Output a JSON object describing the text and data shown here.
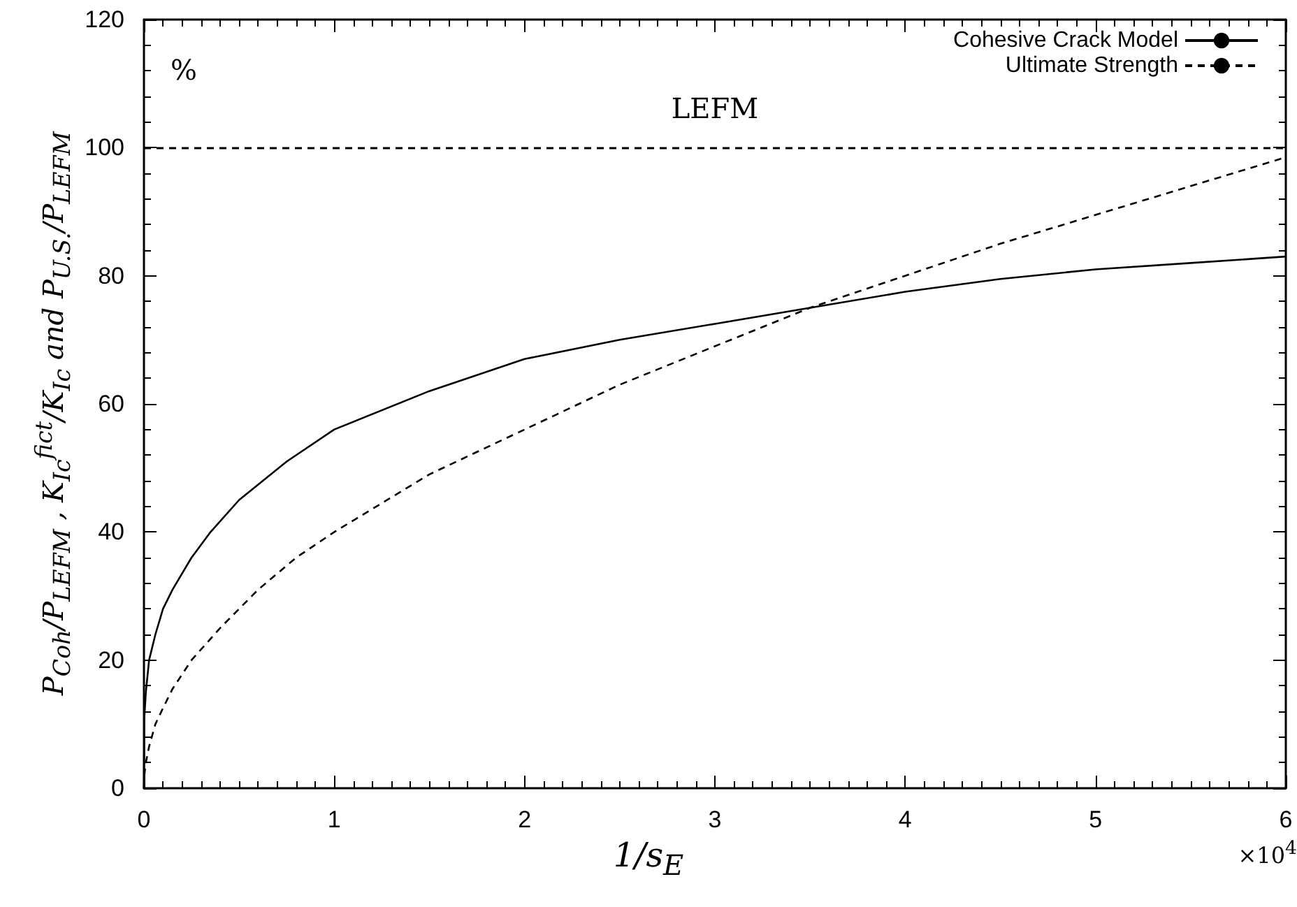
{
  "chart_data": {
    "type": "line",
    "xlabel": "1/s$_{E}$",
    "ylabel": "P$_{Coh}$/P$_{LEFM}$ , K$_{Ic}$$^{fict}$/K$_{Ic}$ and P$_{U.S.}$/P$_{LEFM}$",
    "annotations": [
      "%",
      "×10$^{4}$"
    ],
    "series": [
      {
        "name": "Cohesive Crack Model",
        "color": "#000000",
        "line_style": "solid",
        "x": [
          0,
          0.002,
          0.01,
          0.027,
          0.06,
          0.1,
          0.15,
          0.25,
          0.35,
          0.5,
          0.75,
          1,
          1.5,
          2,
          2.5,
          3,
          3.5,
          4,
          4.5,
          5,
          5.5,
          6
        ],
        "values": [
          0,
          11,
          15,
          20,
          24,
          28,
          31,
          36,
          40,
          45,
          51,
          56,
          62,
          67,
          70,
          72.5,
          75,
          77.5,
          79.5,
          81,
          82,
          83
        ]
      },
      {
        "name": "Ultimate Strength",
        "color": "#000000",
        "line_style": "dashed",
        "x": [
          0,
          0.002,
          0.01,
          0.027,
          0.06,
          0.1,
          0.15,
          0.25,
          0.4,
          0.6,
          0.8,
          1,
          1.5,
          2,
          2.5,
          3,
          3.5,
          4,
          4.5,
          5,
          5.5,
          6
        ],
        "values": [
          0,
          2,
          4,
          6.5,
          10,
          12.5,
          15.5,
          20,
          25,
          31,
          36,
          40,
          49,
          56,
          63,
          69,
          75,
          80,
          85,
          89.5,
          94,
          98.5
        ]
      }
    ],
    "ref_lines": [
      {
        "axis": "y",
        "value": 100,
        "label": "LEFM",
        "color": "#000000",
        "line_style": "dashed"
      }
    ],
    "xlim": [
      0,
      6
    ],
    "xticks": [
      0,
      1,
      2,
      3,
      4,
      5,
      6
    ],
    "ylim": [
      0,
      120
    ],
    "yticks": [
      0,
      20,
      40,
      60,
      80,
      100,
      120
    ],
    "grid": false,
    "legend": "top right",
    "marker": "none"
  }
}
